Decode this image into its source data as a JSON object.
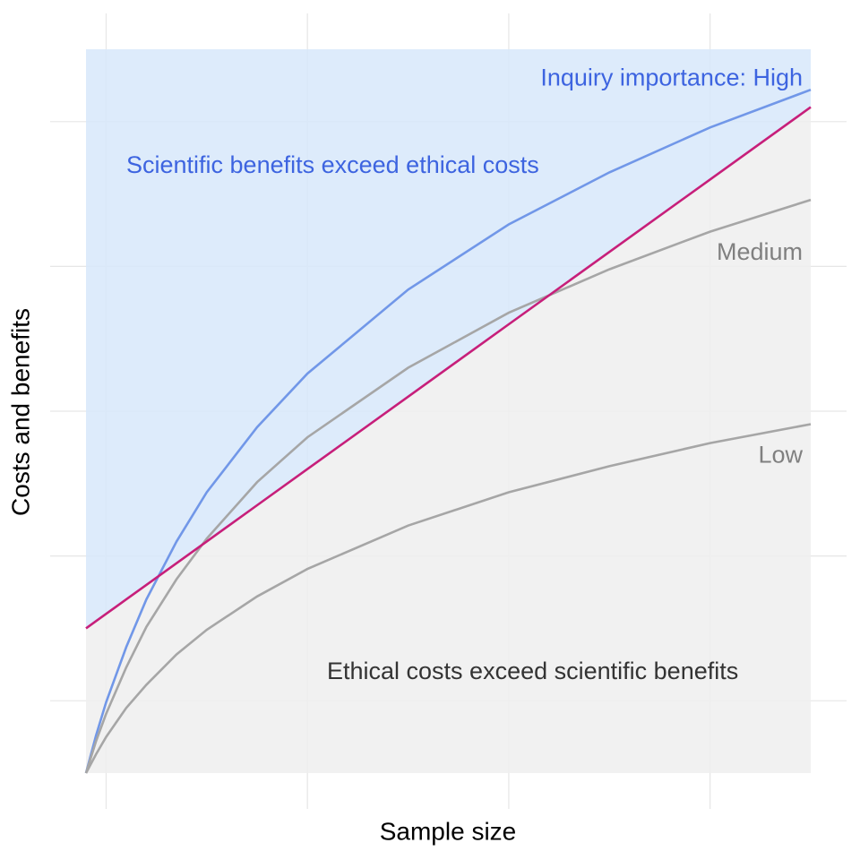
{
  "chart_data": {
    "type": "line",
    "x_label": "Sample size",
    "y_label": "Costs and benefits",
    "x": [
      0.9,
      0.95,
      1.0,
      1.1,
      1.2,
      1.35,
      1.5,
      1.75,
      2.0,
      2.5,
      3.0,
      3.5,
      4.0,
      4.5
    ],
    "series": [
      {
        "name": "Inquiry importance: High",
        "color": "#7197e8",
        "label_color": "#3d64e0",
        "values": [
          0.5,
          0.76,
          0.99,
          1.37,
          1.7,
          2.1,
          2.44,
          2.89,
          3.26,
          3.84,
          4.29,
          4.65,
          4.96,
          5.22
        ]
      },
      {
        "name": "Medium",
        "color": "#a6a6a6",
        "label_color": "#808080",
        "values": [
          0.5,
          0.72,
          0.91,
          1.23,
          1.51,
          1.84,
          2.12,
          2.51,
          2.82,
          3.3,
          3.68,
          3.98,
          4.24,
          4.46
        ]
      },
      {
        "name": "Low",
        "color": "#a6a6a6",
        "label_color": "#808080",
        "values": [
          0.5,
          0.63,
          0.75,
          0.95,
          1.11,
          1.32,
          1.49,
          1.72,
          1.91,
          2.21,
          2.44,
          2.62,
          2.78,
          2.91
        ]
      },
      {
        "color": "#c71f7a",
        "values": [
          1.5,
          1.55,
          1.6,
          1.7,
          1.8,
          1.95,
          2.1,
          2.35,
          2.6,
          3.1,
          3.6,
          4.1,
          4.6,
          5.1
        ]
      }
    ],
    "annotations": [
      {
        "text": "Scientific benefits exceed ethical costs",
        "color": "#3d64e0"
      },
      {
        "text": "Ethical costs exceed scientific benefits",
        "color": "#333333"
      }
    ],
    "fill_above": "#d7e8fa",
    "fill_below": "#eeeeee",
    "xlim": [
      0.9,
      4.5
    ],
    "ylim": [
      0.5,
      5.5
    ],
    "xticks": [
      1,
      2,
      3,
      4
    ],
    "yticks": [
      1,
      2,
      3,
      4,
      5
    ],
    "grid": true
  }
}
